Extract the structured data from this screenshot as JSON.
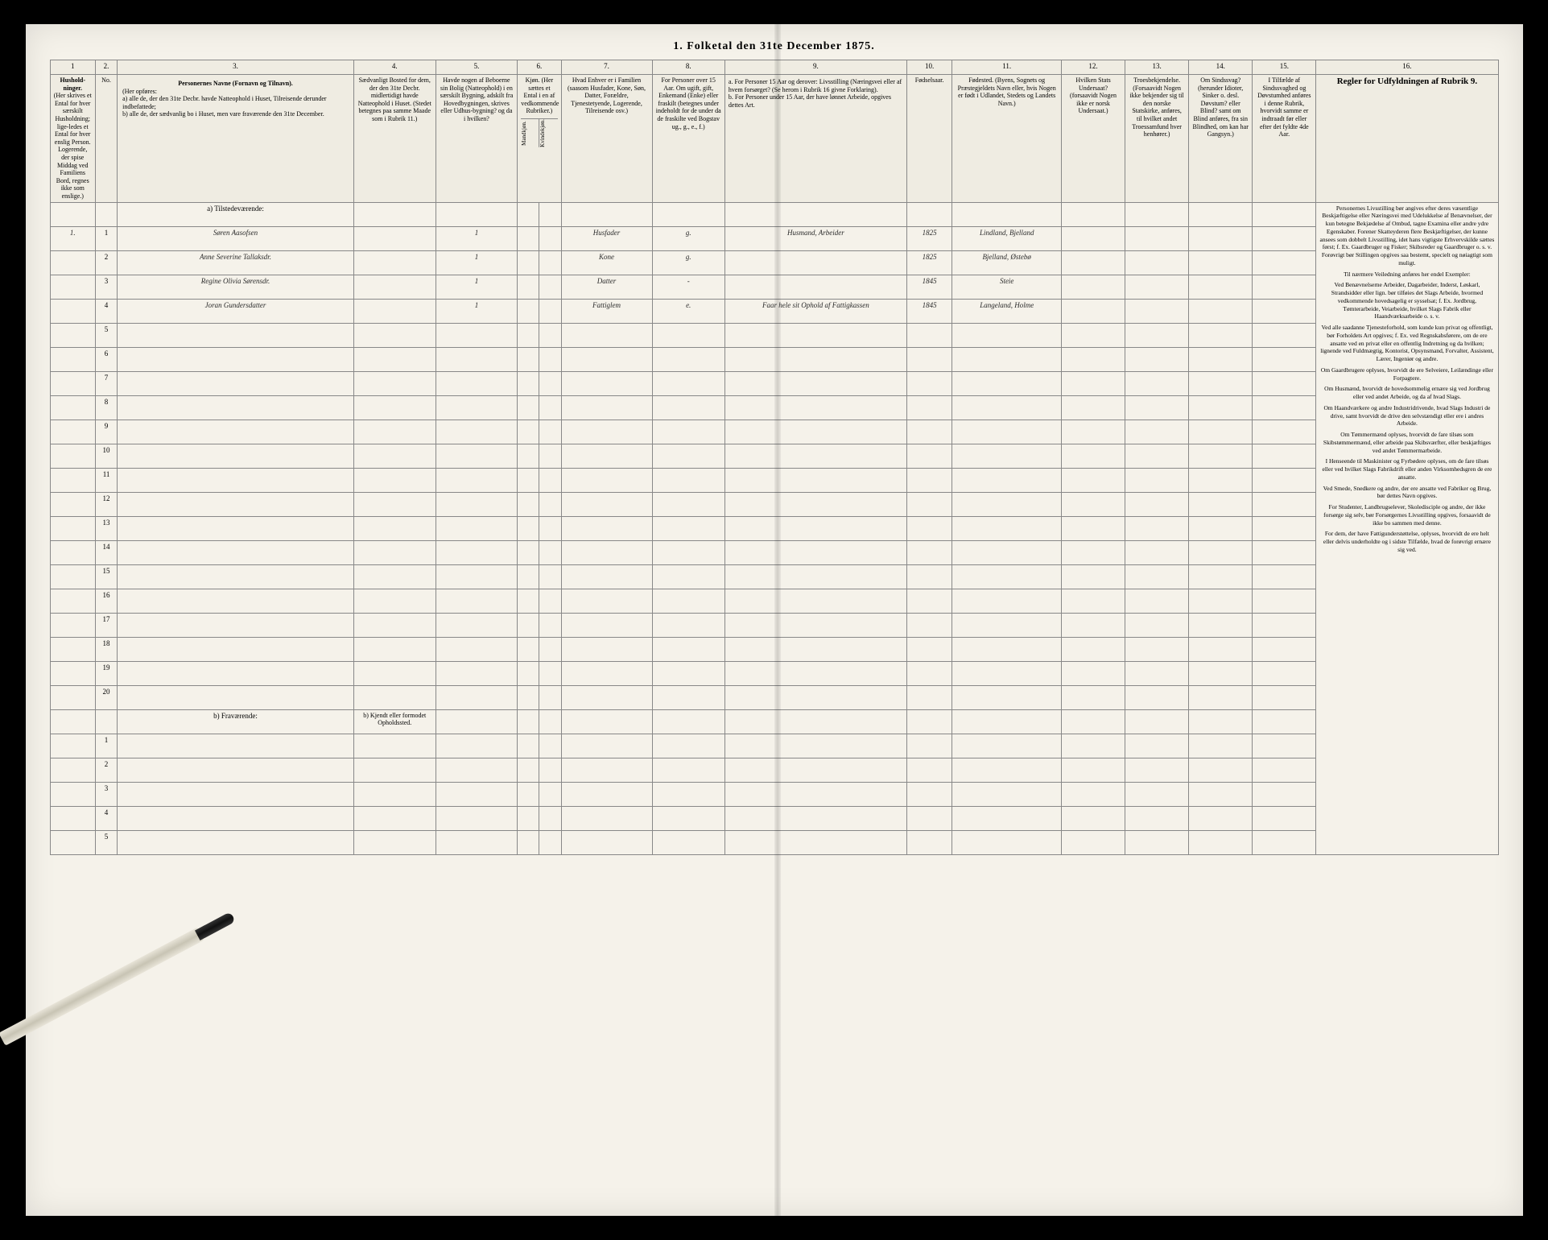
{
  "title": "1. Folketal den 31te December 1875.",
  "columns": {
    "nums": [
      "1",
      "2.",
      "3.",
      "4.",
      "5.",
      "6.",
      "7.",
      "8.",
      "9.",
      "10.",
      "11.",
      "12.",
      "13.",
      "14.",
      "15.",
      "16."
    ],
    "h1": "Hushold-ninger.",
    "h1b": "(Her skrives et Ental for hver særskilt Husholdning; lige-ledes et Ental for hver enslig Person. Logerende, der spise Middag ved Familiens Bord, regnes ikke som enslige.)",
    "h2": "No.",
    "h3_title": "Personernes Navne (Fornavn og Tilnavn).",
    "h3_sub": "(Her opføres:",
    "h3_a": "a) alle de, der den 31te Decbr. havde Natteophold i Huset, Tilreisende derunder indbefattede;",
    "h3_b": "b) alle de, der sædvanlig bo i Huset, men vare fraværende den 31te December.",
    "h4": "Sædvanligt Bosted for dem, der den 31te Decbr. midlertidigt havde Natteophold i Huset. (Stedet betegnes paa samme Maade som i Rubrik 11.)",
    "h5": "Havde nogen af Beboerne sin Bolig (Natteophold) i en særskilt Bygning, adskilt fra Hovedbygningen, skrives eller Udhus-bygning? og da i hvilken?",
    "h6": "Kjøn. (Her sættes et Ental i en af vedkommende Rubriker.)",
    "h6a": "Mandkjøn.",
    "h6b": "Kvindekjøn.",
    "h7": "Hvad Enhver er i Familien (saasom Husfader, Kone, Søn, Datter, Forældre, Tjenestetyende, Logerende, Tilreisende osv.)",
    "h8": "For Personer over 15 Aar. Om ugift, gift, Enkemand (Enke) eller fraskilt (betegnes under indeholdt for de under da de fraskilte ved Bogstav ug., g., e., f.)",
    "h9_a": "a. For Personer 15 Aar og derover: Livsstilling (Næringsvei eller af hvem forsørget? (Se herom i Rubrik 16 givne Forklaring).",
    "h9_b": "b. For Personer under 15 Aar, der have lønnet Arbeide, opgives dettes Art.",
    "h10": "Fødselsaar.",
    "h11": "Fødested. (Byens, Sognets og Præstegjeldets Navn eller, hvis Nogen er født i Udlandet, Stedets og Landets Navn.)",
    "h12": "Hvilken Stats Undersaat? (forsaavidt Nogen ikke er norsk Undersaat.)",
    "h13": "Troesbekjendelse. (Forsaavidt Nogen ikke bekjender sig til den norske Statskirke, anføres, til hvilket andet Troessamfund hver henhører.)",
    "h14": "Om Sindssvag? (herunder Idioter, Sinker o. desl. Døvstum? eller Blind? samt om Blind anføres, fra sin Blindhed, om kan har Gangsyn.)",
    "h15": "I Tilfælde af Sindssvaghed og Døvstumhed anføres i denne Rubrik, hvorvidt samme er indtraadt før eller efter det fyldte 4de Aar.",
    "h16_title": "Regler for Udfyldningen af Rubrik 9."
  },
  "section_present": "a) Tilstedeværende:",
  "section_absent": "b) Fraværende:",
  "section_absent_note": "b) Kjendt eller formodet Opholdssted.",
  "rows": [
    {
      "hh": "1.",
      "n": "1",
      "name": "Søren Aasofsen",
      "c5": "1",
      "rel": "Husfader",
      "ms": "g.",
      "occ": "Husmand, Arbeider",
      "yr": "1825",
      "bp": "Lindland, Bjelland"
    },
    {
      "hh": "",
      "n": "2",
      "name": "Anne Severine Tallaksdr.",
      "c5": "1",
      "rel": "Kone",
      "ms": "g.",
      "occ": "",
      "yr": "1825",
      "bp": "Bjelland, Østebø"
    },
    {
      "hh": "",
      "n": "3",
      "name": "Regine Olivia Sørensdr.",
      "c5": "1",
      "rel": "Datter",
      "ms": "-",
      "occ": "",
      "yr": "1845",
      "bp": "Steie"
    },
    {
      "hh": "",
      "n": "4",
      "name": "Joran Gundersdatter",
      "c5": "1",
      "rel": "Fattiglem",
      "ms": "e.",
      "occ": "Faar hele sit Ophold af Fattigkassen",
      "yr": "1845",
      "bp": "Langeland, Holme"
    }
  ],
  "empty_rows": [
    "5",
    "6",
    "7",
    "8",
    "9",
    "10",
    "11",
    "12",
    "13",
    "14",
    "15",
    "16",
    "17",
    "18",
    "19",
    "20"
  ],
  "absent_rows": [
    "1",
    "2",
    "3",
    "4",
    "5"
  ],
  "rules_text": [
    "Personernes Livsstilling bør angives efter deres væsentlige Beskjæftigelse eller Næringsvei med Udelukkelse af Benævnelser, der kun betegne Bekjædelse af Ombud, tagne Examina eller andre ydre Egenskaber. Forener Skatteyderen flere Beskjæftigelser, der kunne ansees som dobbelt Livsstilling, idet hans vigtigste Erhvervskilde sættes først; f. Ex. Gaardbruger og Fisker; Skibsreder og Gaardbruger o. s. v. Forøvrigt bør Stillingen opgives saa bestemt, specielt og nøiagtigt som muligt.",
    "Til nærmere Veiledning anføres her endel Exempler:",
    "Ved Benævnelserne Arbeider, Dagarbeider, Inderst, Løskarl, Strandsidder eller lign. bør tilføies det Slags Arbeide, hvormed vedkommende hovedsagelig er sysselsat; f. Ex. Jordbrug, Tømterarbeide, Veiarbeide, hvilket Slags Fabrik eller Haandværksarbeide o. s. v.",
    "Ved alle saadanne Tjenesteforhold, som kunde kun privat og offentligt, bør Forholdets Art opgives; f. Ex. ved Regnskabsførere, om de ere ansatte ved en privat eller en offentlig Indretning og da hvilken; lignende ved Fuldmægtig, Kontorist, Opsynsmand, Forvalter, Assistent, Lærer, Ingeniør og andre.",
    "Om Gaardbrugere oplyses, hvorvidt de ere Selveiere, Leilændinge eller Forpagtere.",
    "Om Husmænd, hvorvidt de hovedsommelig ernære sig ved Jordbrug eller ved andet Arbeide, og da af hvad Slags.",
    "Om Haandværkere og andre Industridrivende, hvad Slags Industri de drive, samt hvorvidt de drive den selvstændigt eller ere i andres Arbeide.",
    "Om Tømmermænd oplyses, hvorvidt de fare tilsøs som Skibstømmermænd, eller arbeide paa Skibsværfter, eller beskjæftiges ved andet Tømmermarbeide.",
    "I Henseende til Maskinister og Fyrbødere oplyses, om de fare tilsøs eller ved hvilket Slags Fabrikdrift eller anden Virksomhedsgren de ere ansatte.",
    "Ved Smede, Snedkere og andre, der ere ansatte ved Fabriker og Brug, bør dettes Navn opgives.",
    "For Studenter, Landbrugselever, Skoledisciple og andre, der ikke forsørge sig selv, bør Forsørgernes Livsstilling opgives, forsaavidt de ikke bo sammen med denne.",
    "For dem, der have Fattigunderstøttelse, oplyses, hvorvidt de ere helt eller delvis underholdte og i sidste Tilfælde, hvad de forøvrigt ernære sig ved."
  ]
}
